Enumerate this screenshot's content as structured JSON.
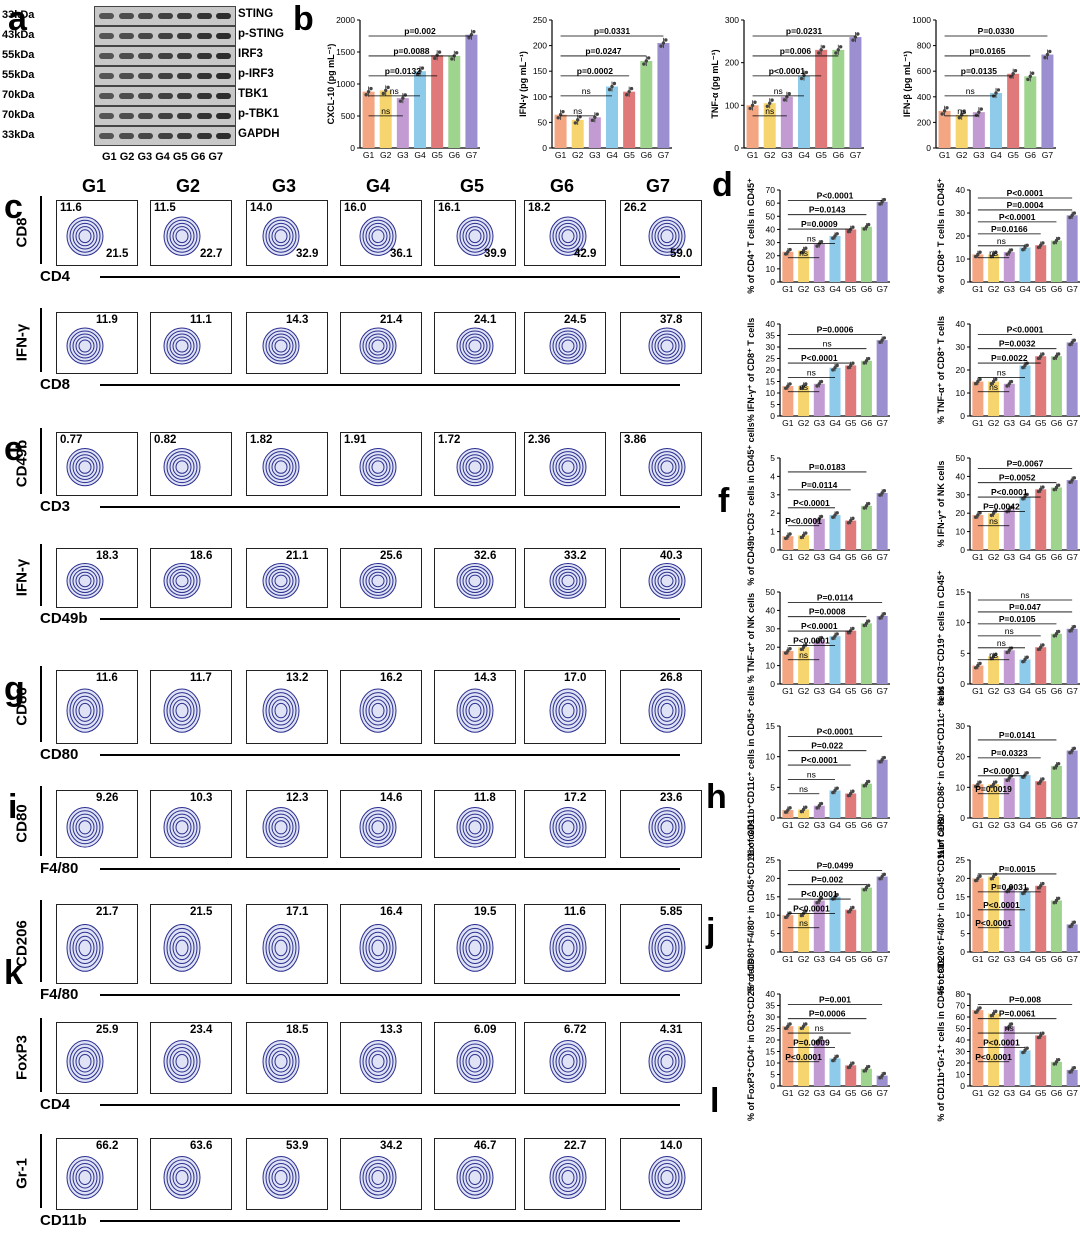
{
  "panel_labels": {
    "a": "a",
    "b": "b",
    "c": "c",
    "d": "d",
    "e": "e",
    "f": "f",
    "g": "g",
    "h": "h",
    "i": "i",
    "j": "j",
    "k": "k",
    "l": "l"
  },
  "groups": [
    "G1",
    "G2",
    "G3",
    "G4",
    "G5",
    "G6",
    "G7"
  ],
  "western_blot": {
    "kda": [
      "33kDa",
      "43kDa",
      "55kDa",
      "55kDa",
      "70kDa",
      "70kDa",
      "33kDa"
    ],
    "proteins": [
      "STING",
      "p-STING",
      "IRF3",
      "p-IRF3",
      "TBK1",
      "p-TBK1",
      "GAPDH"
    ],
    "lanes": "G1 G2 G3 G4 G5 G6 G7"
  },
  "flow": {
    "rows": [
      {
        "y_axis": "CD8",
        "x_axis": "CD4",
        "values": [
          "11.6",
          "11.5",
          "14.0",
          "16.0",
          "16.1",
          "18.2",
          "26.2"
        ],
        "values2": [
          "21.5",
          "22.7",
          "32.9",
          "36.1",
          "39.9",
          "42.9",
          "59.0"
        ]
      },
      {
        "y_axis": "IFN-γ",
        "x_axis": "CD8",
        "values": [
          "11.9",
          "11.1",
          "14.3",
          "21.4",
          "24.1",
          "24.5",
          "37.8"
        ]
      },
      {
        "y_axis": "CD49b",
        "x_axis": "CD3",
        "values": [
          "0.77",
          "0.82",
          "1.82",
          "1.91",
          "1.72",
          "2.36",
          "3.86"
        ]
      },
      {
        "y_axis": "IFN-γ",
        "x_axis": "CD49b",
        "values": [
          "18.3",
          "18.6",
          "21.1",
          "25.6",
          "32.6",
          "33.2",
          "40.3"
        ]
      },
      {
        "y_axis": "CD86",
        "x_axis": "CD80",
        "values": [
          "11.6",
          "11.7",
          "13.2",
          "16.2",
          "14.3",
          "17.0",
          "26.8"
        ]
      },
      {
        "y_axis": "CD80",
        "x_axis": "F4/80",
        "values": [
          "9.26",
          "10.3",
          "12.3",
          "14.6",
          "11.8",
          "17.2",
          "23.6"
        ]
      },
      {
        "y_axis": "CD206",
        "x_axis": "F4/80",
        "values": [
          "21.7",
          "21.5",
          "17.1",
          "16.4",
          "19.5",
          "11.6",
          "5.85"
        ]
      },
      {
        "y_axis": "FoxP3",
        "x_axis": "CD4",
        "values": [
          "25.9",
          "23.4",
          "18.5",
          "13.3",
          "6.09",
          "6.72",
          "4.31"
        ]
      },
      {
        "y_axis": "Gr-1",
        "x_axis": "CD11b",
        "values": [
          "66.2",
          "63.6",
          "53.9",
          "34.2",
          "46.7",
          "22.7",
          "14.0"
        ]
      }
    ]
  },
  "chart_data": [
    {
      "type": "bar",
      "panel": "b",
      "ylabel": "CXCL-10 (pg mL⁻¹)",
      "ylim": [
        0,
        2000
      ],
      "yticks": [
        "0",
        "500",
        "1000",
        "1500",
        "2000"
      ],
      "categories": [
        "G1",
        "G2",
        "G3",
        "G4",
        "G5",
        "G6",
        "G7"
      ],
      "values": [
        880,
        900,
        780,
        1200,
        1450,
        1440,
        1770
      ],
      "colors": [
        "#f4a582",
        "#f7d56e",
        "#c39bd3",
        "#8ecbea",
        "#e07a7a",
        "#9fd48e",
        "#9c8fd0"
      ],
      "annotations": [
        "ns",
        "ns",
        "p=0.0132",
        "p=0.0088",
        "p=0.002"
      ]
    },
    {
      "type": "bar",
      "panel": "b",
      "ylabel": "IFN-γ (pg mL⁻¹)",
      "ylim": [
        0,
        250
      ],
      "yticks": [
        "0",
        "50",
        "100",
        "150",
        "200",
        "250"
      ],
      "categories": [
        "G1",
        "G2",
        "G3",
        "G4",
        "G5",
        "G6",
        "G7"
      ],
      "values": [
        65,
        55,
        60,
        120,
        110,
        170,
        205
      ],
      "colors": [
        "#f4a582",
        "#f7d56e",
        "#c39bd3",
        "#8ecbea",
        "#e07a7a",
        "#9fd48e",
        "#9c8fd0"
      ],
      "annotations": [
        "ns",
        "ns",
        "p=0.0002",
        "p=0.0247",
        "p=0.0331"
      ]
    },
    {
      "type": "bar",
      "panel": "b",
      "ylabel": "TNF-α (pg mL⁻¹)",
      "ylim": [
        0,
        300
      ],
      "yticks": [
        "0",
        "100",
        "200",
        "300"
      ],
      "categories": [
        "G1",
        "G2",
        "G3",
        "G4",
        "G5",
        "G6",
        "G7"
      ],
      "values": [
        100,
        105,
        120,
        170,
        230,
        230,
        260
      ],
      "colors": [
        "#f4a582",
        "#f7d56e",
        "#c39bd3",
        "#8ecbea",
        "#e07a7a",
        "#9fd48e",
        "#9c8fd0"
      ],
      "annotations": [
        "ns",
        "ns",
        "p<0.0001",
        "p=0.006",
        "p=0.0231"
      ]
    },
    {
      "type": "bar",
      "panel": "b",
      "ylabel": "IFN-β (pg mL⁻¹)",
      "ylim": [
        0,
        1000
      ],
      "yticks": [
        "0",
        "200",
        "400",
        "600",
        "800",
        "1000"
      ],
      "categories": [
        "G1",
        "G2",
        "G3",
        "G4",
        "G5",
        "G6",
        "G7"
      ],
      "values": [
        290,
        260,
        280,
        430,
        580,
        560,
        730
      ],
      "colors": [
        "#f4a582",
        "#f7d56e",
        "#c39bd3",
        "#8ecbea",
        "#e07a7a",
        "#9fd48e",
        "#9c8fd0"
      ],
      "annotations": [
        "ns",
        "ns",
        "p=0.0135",
        "p=0.0165",
        "P=0.0330"
      ]
    },
    {
      "type": "bar",
      "panel": "d",
      "ylabel": "% of CD4⁺ T cells in CD45⁺",
      "ylim": [
        0,
        70
      ],
      "yticks": [
        "0",
        "10",
        "20",
        "30",
        "40",
        "50",
        "60",
        "70"
      ],
      "categories": [
        "G1",
        "G2",
        "G3",
        "G4",
        "G5",
        "G6",
        "G7"
      ],
      "values": [
        23,
        24,
        29,
        35,
        40,
        42,
        61
      ],
      "colors": [
        "#f4a582",
        "#f7d56e",
        "#c39bd3",
        "#8ecbea",
        "#e07a7a",
        "#9fd48e",
        "#9c8fd0"
      ],
      "annotations": [
        "ns",
        "ns",
        "P=0.0009",
        "P=0.0143",
        "P<0.0001"
      ]
    },
    {
      "type": "bar",
      "panel": "d",
      "ylabel": "% of CD8⁺ T cells in CD45⁺",
      "ylim": [
        0,
        40
      ],
      "yticks": [
        "0",
        "10",
        "20",
        "30",
        "40"
      ],
      "categories": [
        "G1",
        "G2",
        "G3",
        "G4",
        "G5",
        "G6",
        "G7"
      ],
      "values": [
        12,
        12,
        13,
        15,
        16,
        18,
        29
      ],
      "colors": [
        "#f4a582",
        "#f7d56e",
        "#c39bd3",
        "#8ecbea",
        "#e07a7a",
        "#9fd48e",
        "#9c8fd0"
      ],
      "annotations": [
        "ns",
        "ns",
        "P=0.0166",
        "P<0.0001",
        "P=0.0004",
        "P<0.0001"
      ]
    },
    {
      "type": "bar",
      "panel": "d",
      "ylabel": "% IFN-γ⁺ of CD8⁺ T cells",
      "ylim": [
        0,
        40
      ],
      "yticks": [
        "0",
        "5",
        "10",
        "15",
        "20",
        "25",
        "30",
        "35",
        "40"
      ],
      "categories": [
        "G1",
        "G2",
        "G3",
        "G4",
        "G5",
        "G6",
        "G7"
      ],
      "values": [
        13,
        13,
        14,
        21,
        22,
        24,
        33
      ],
      "colors": [
        "#f4a582",
        "#f7d56e",
        "#c39bd3",
        "#8ecbea",
        "#e07a7a",
        "#9fd48e",
        "#9c8fd0"
      ],
      "annotations": [
        "ns",
        "ns",
        "P<0.0001",
        "ns",
        "P=0.0006"
      ]
    },
    {
      "type": "bar",
      "panel": "d",
      "ylabel": "% TNF-α⁺ of CD8⁺ T cells",
      "ylim": [
        0,
        40
      ],
      "yticks": [
        "0",
        "10",
        "20",
        "30",
        "40"
      ],
      "categories": [
        "G1",
        "G2",
        "G3",
        "G4",
        "G5",
        "G6",
        "G7"
      ],
      "values": [
        15,
        15,
        14,
        22,
        26,
        26,
        32
      ],
      "colors": [
        "#f4a582",
        "#f7d56e",
        "#c39bd3",
        "#8ecbea",
        "#e07a7a",
        "#9fd48e",
        "#9c8fd0"
      ],
      "annotations": [
        "ns",
        "ns",
        "P=0.0022",
        "P=0.0032",
        "P<0.0001"
      ]
    },
    {
      "type": "bar",
      "panel": "f",
      "ylabel": "% of CD49b⁺CD3⁻ cells in CD45⁺ cells",
      "ylim": [
        0,
        5
      ],
      "yticks": [
        "0",
        "1",
        "2",
        "3",
        "4",
        "5"
      ],
      "categories": [
        "G1",
        "G2",
        "G3",
        "G4",
        "G5",
        "G6",
        "G7"
      ],
      "values": [
        0.75,
        0.8,
        1.7,
        1.9,
        1.6,
        2.4,
        3.1
      ],
      "colors": [
        "#f4a582",
        "#f7d56e",
        "#c39bd3",
        "#8ecbea",
        "#e07a7a",
        "#9fd48e",
        "#9c8fd0"
      ],
      "annotations": [
        "P<0.0001",
        "P<0.0001",
        "P=0.0114",
        "P=0.0183"
      ]
    },
    {
      "type": "bar",
      "panel": "f",
      "ylabel": "% IFN-γ⁺ of NK cells",
      "ylim": [
        0,
        50
      ],
      "yticks": [
        "0",
        "10",
        "20",
        "30",
        "40",
        "50"
      ],
      "categories": [
        "G1",
        "G2",
        "G3",
        "G4",
        "G5",
        "G6",
        "G7"
      ],
      "values": [
        19,
        20,
        22,
        29,
        33,
        34,
        38
      ],
      "colors": [
        "#f4a582",
        "#f7d56e",
        "#c39bd3",
        "#8ecbea",
        "#e07a7a",
        "#9fd48e",
        "#9c8fd0"
      ],
      "annotations": [
        "ns",
        "P=0.0042",
        "P<0.0001",
        "P=0.0052",
        "P=0.0067"
      ]
    },
    {
      "type": "bar",
      "panel": "f",
      "ylabel": "% TNF-α⁺ of NK cells",
      "ylim": [
        0,
        50
      ],
      "yticks": [
        "0",
        "10",
        "20",
        "30",
        "40",
        "50"
      ],
      "categories": [
        "G1",
        "G2",
        "G3",
        "G4",
        "G5",
        "G6",
        "G7"
      ],
      "values": [
        18,
        20,
        24,
        26,
        29,
        33,
        37
      ],
      "colors": [
        "#f4a582",
        "#f7d56e",
        "#c39bd3",
        "#8ecbea",
        "#e07a7a",
        "#9fd48e",
        "#9c8fd0"
      ],
      "annotations": [
        "ns",
        "P<0.0001",
        "P<0.0001",
        "P=0.0008",
        "P=0.0114"
      ]
    },
    {
      "type": "bar",
      "panel": "f",
      "ylabel": "% of CD3⁻CD19⁺ cells in CD45⁺",
      "ylim": [
        0,
        15
      ],
      "yticks": [
        "0",
        "5",
        "10",
        "15"
      ],
      "categories": [
        "G1",
        "G2",
        "G3",
        "G4",
        "G5",
        "G6",
        "G7"
      ],
      "values": [
        3,
        4.5,
        5.5,
        4,
        6,
        8.2,
        9
      ],
      "colors": [
        "#f4a582",
        "#f7d56e",
        "#c39bd3",
        "#8ecbea",
        "#e07a7a",
        "#9fd48e",
        "#9c8fd0"
      ],
      "annotations": [
        "ns",
        "ns",
        "ns",
        "P=0.0105",
        "P=0.047",
        "ns"
      ]
    },
    {
      "type": "bar",
      "panel": "h",
      "ylabel": "% of CD11b⁺CD11c⁺ cells in CD45⁺ cells",
      "ylim": [
        0,
        15
      ],
      "yticks": [
        "0",
        "5",
        "10",
        "15"
      ],
      "categories": [
        "G1",
        "G2",
        "G3",
        "G4",
        "G5",
        "G6",
        "G7"
      ],
      "values": [
        1.3,
        1.4,
        2,
        4.5,
        4,
        5.6,
        9.5
      ],
      "colors": [
        "#f4a582",
        "#f7d56e",
        "#c39bd3",
        "#8ecbea",
        "#e07a7a",
        "#9fd48e",
        "#9c8fd0"
      ],
      "annotations": [
        "ns",
        "ns",
        "P<0.0001",
        "P=0.022",
        "P<0.0001"
      ]
    },
    {
      "type": "bar",
      "panel": "h",
      "ylabel": "% of CD80⁺CD86⁺ in CD45⁺CD11c⁺ cells",
      "ylim": [
        0,
        30
      ],
      "yticks": [
        "0",
        "10",
        "20",
        "30"
      ],
      "categories": [
        "G1",
        "G2",
        "G3",
        "G4",
        "G5",
        "G6",
        "G7"
      ],
      "values": [
        11,
        11,
        13,
        14,
        12,
        17,
        22
      ],
      "colors": [
        "#f4a582",
        "#f7d56e",
        "#c39bd3",
        "#8ecbea",
        "#e07a7a",
        "#9fd48e",
        "#9c8fd0"
      ],
      "annotations": [
        "P=0.0019",
        "P<0.0001",
        "P=0.0323",
        "P=0.0141"
      ]
    },
    {
      "type": "bar",
      "panel": "j",
      "ylabel": "% of CD80⁺F4/80⁺ in CD45⁺CD11b⁺ cells",
      "ylim": [
        0,
        25
      ],
      "yticks": [
        "0",
        "5",
        "10",
        "15",
        "20",
        "25"
      ],
      "categories": [
        "G1",
        "G2",
        "G3",
        "G4",
        "G5",
        "G6",
        "G7"
      ],
      "values": [
        10,
        10.5,
        14,
        15,
        11.5,
        17.5,
        20.5
      ],
      "colors": [
        "#f4a582",
        "#f7d56e",
        "#c39bd3",
        "#8ecbea",
        "#e07a7a",
        "#9fd48e",
        "#9c8fd0"
      ],
      "annotations": [
        "ns",
        "P<0.0001",
        "P<0.0001",
        "P=0.002",
        "P=0.0499"
      ]
    },
    {
      "type": "bar",
      "panel": "j",
      "ylabel": "% of CD206⁺F4/80⁺ in CD45⁺CD11b⁺ cells",
      "ylim": [
        0,
        25
      ],
      "yticks": [
        "0",
        "5",
        "10",
        "15",
        "20",
        "25"
      ],
      "categories": [
        "G1",
        "G2",
        "G3",
        "G4",
        "G5",
        "G6",
        "G7"
      ],
      "values": [
        20,
        20.5,
        17,
        16.5,
        18,
        14,
        7.5
      ],
      "colors": [
        "#f4a582",
        "#f7d56e",
        "#c39bd3",
        "#8ecbea",
        "#e07a7a",
        "#9fd48e",
        "#9c8fd0"
      ],
      "annotations": [
        "P<0.0001",
        "P<0.0001",
        "P=0.0031",
        "P=0.0015"
      ]
    },
    {
      "type": "bar",
      "panel": "l",
      "ylabel": "% of FoxP3⁺CD4⁺ in CD3⁺CD25⁺ cells",
      "ylim": [
        0,
        40
      ],
      "yticks": [
        "0",
        "5",
        "10",
        "15",
        "20",
        "25",
        "30",
        "35",
        "40"
      ],
      "categories": [
        "G1",
        "G2",
        "G3",
        "G4",
        "G5",
        "G6",
        "G7"
      ],
      "values": [
        26,
        26,
        20,
        12,
        9,
        7.5,
        4.5
      ],
      "colors": [
        "#f4a582",
        "#f7d56e",
        "#c39bd3",
        "#8ecbea",
        "#e07a7a",
        "#9fd48e",
        "#9c8fd0"
      ],
      "annotations": [
        "P<0.0001",
        "P=0.0009",
        "ns",
        "P=0.0006",
        "P=0.001"
      ]
    },
    {
      "type": "bar",
      "panel": "l",
      "ylabel": "% of CD11b⁺Gr-1⁺ cells in CD45⁺ cells",
      "ylim": [
        0,
        80
      ],
      "yticks": [
        "0",
        "10",
        "20",
        "30",
        "40",
        "50",
        "60",
        "70",
        "80"
      ],
      "categories": [
        "G1",
        "G2",
        "G3",
        "G4",
        "G5",
        "G6",
        "G7"
      ],
      "values": [
        66,
        63,
        52,
        31,
        44,
        21,
        14
      ],
      "colors": [
        "#f4a582",
        "#f7d56e",
        "#c39bd3",
        "#8ecbea",
        "#e07a7a",
        "#9fd48e",
        "#9c8fd0"
      ],
      "annotations": [
        "P<0.0001",
        "P<0.0001",
        "ns",
        "P=0.0061",
        "P=0.008"
      ]
    }
  ]
}
